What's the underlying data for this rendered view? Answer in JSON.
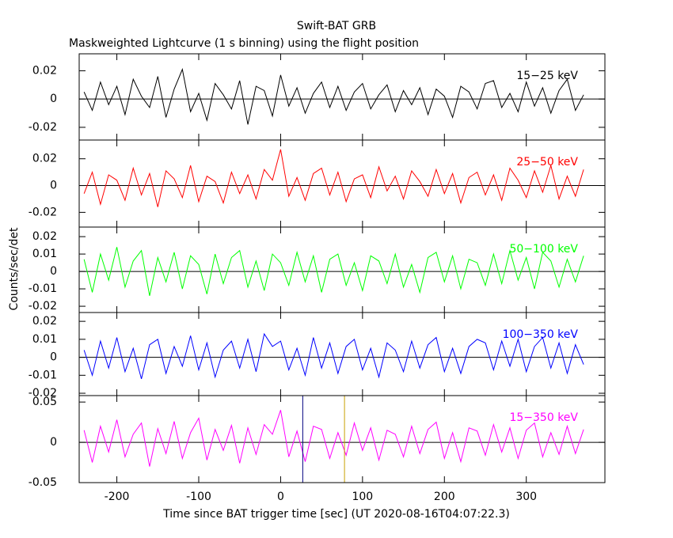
{
  "chart_data": [
    {
      "type": "line",
      "title": "Swift-BAT GRB",
      "subtitle": "Maskweighted Lightcurve (1 s binning) using the flight position",
      "xlim": [
        -246,
        396
      ],
      "xticks": [
        -200,
        -100,
        0,
        100,
        200,
        300
      ],
      "ylim": [
        -0.029,
        0.032
      ],
      "yticks": [
        -0.02,
        0,
        0.02
      ],
      "zero_line": true,
      "x": [
        -240,
        -230,
        -220,
        -210,
        -200,
        -190,
        -180,
        -170,
        -160,
        -150,
        -140,
        -130,
        -120,
        -110,
        -100,
        -90,
        -80,
        -70,
        -60,
        -50,
        -40,
        -30,
        -20,
        -10,
        0,
        10,
        20,
        30,
        40,
        50,
        60,
        70,
        80,
        90,
        100,
        110,
        120,
        130,
        140,
        150,
        160,
        170,
        180,
        190,
        200,
        210,
        220,
        230,
        240,
        250,
        260,
        270,
        280,
        290,
        300,
        310,
        320,
        330,
        340,
        350,
        360,
        370
      ],
      "series": [
        {
          "name": "15−25 keV",
          "color": "#000000",
          "values": [
            0.005,
            -0.008,
            0.012,
            -0.004,
            0.009,
            -0.011,
            0.014,
            0.002,
            -0.006,
            0.016,
            -0.013,
            0.007,
            0.021,
            -0.009,
            0.004,
            -0.015,
            0.011,
            0.003,
            -0.007,
            0.013,
            -0.018,
            0.009,
            0.006,
            -0.012,
            0.017,
            -0.005,
            0.008,
            -0.01,
            0.004,
            0.012,
            -0.006,
            0.009,
            -0.008,
            0.005,
            0.011,
            -0.007,
            0.003,
            0.01,
            -0.009,
            0.006,
            -0.004,
            0.008,
            -0.011,
            0.007,
            0.002,
            -0.013,
            0.009,
            0.005,
            -0.007,
            0.011,
            0.013,
            -0.006,
            0.004,
            -0.009,
            0.012,
            -0.005,
            0.008,
            -0.01,
            0.006,
            0.014,
            -0.008,
            0.003
          ]
        }
      ]
    },
    {
      "type": "line",
      "xlim": [
        -246,
        396
      ],
      "xticks": [
        -200,
        -100,
        0,
        100,
        200,
        300
      ],
      "ylim": [
        -0.031,
        0.034
      ],
      "yticks": [
        -0.02,
        0,
        0.02
      ],
      "zero_line": true,
      "x": [
        -240,
        -230,
        -220,
        -210,
        -200,
        -190,
        -180,
        -170,
        -160,
        -150,
        -140,
        -130,
        -120,
        -110,
        -100,
        -90,
        -80,
        -70,
        -60,
        -50,
        -40,
        -30,
        -20,
        -10,
        0,
        10,
        20,
        30,
        40,
        50,
        60,
        70,
        80,
        90,
        100,
        110,
        120,
        130,
        140,
        150,
        160,
        170,
        180,
        190,
        200,
        210,
        220,
        230,
        240,
        250,
        260,
        270,
        280,
        290,
        300,
        310,
        320,
        330,
        340,
        350,
        360,
        370
      ],
      "series": [
        {
          "name": "25−50 keV",
          "color": "#ff0000",
          "values": [
            -0.006,
            0.01,
            -0.014,
            0.008,
            0.004,
            -0.011,
            0.013,
            -0.007,
            0.009,
            -0.016,
            0.011,
            0.005,
            -0.009,
            0.015,
            -0.012,
            0.007,
            0.003,
            -0.013,
            0.01,
            -0.006,
            0.008,
            -0.01,
            0.012,
            0.004,
            0.027,
            -0.008,
            0.006,
            -0.011,
            0.009,
            0.013,
            -0.007,
            0.01,
            -0.012,
            0.005,
            0.008,
            -0.009,
            0.014,
            -0.004,
            0.007,
            -0.01,
            0.011,
            0.003,
            -0.008,
            0.012,
            -0.006,
            0.009,
            -0.013,
            0.006,
            0.01,
            -0.007,
            0.008,
            -0.011,
            0.013,
            0.004,
            -0.009,
            0.011,
            -0.005,
            0.015,
            -0.01,
            0.007,
            -0.008,
            0.012
          ]
        }
      ]
    },
    {
      "type": "line",
      "ylabel": "Counts/sec/det",
      "xlim": [
        -246,
        396
      ],
      "xticks": [
        -200,
        -100,
        0,
        100,
        200,
        300
      ],
      "ylim": [
        -0.0236,
        0.0255
      ],
      "yticks": [
        -0.02,
        -0.01,
        0,
        0.01,
        0.02
      ],
      "zero_line": true,
      "x": [
        -240,
        -230,
        -220,
        -210,
        -200,
        -190,
        -180,
        -170,
        -160,
        -150,
        -140,
        -130,
        -120,
        -110,
        -100,
        -90,
        -80,
        -70,
        -60,
        -50,
        -40,
        -30,
        -20,
        -10,
        0,
        10,
        20,
        30,
        40,
        50,
        60,
        70,
        80,
        90,
        100,
        110,
        120,
        130,
        140,
        150,
        160,
        170,
        180,
        190,
        200,
        210,
        220,
        230,
        240,
        250,
        260,
        270,
        280,
        290,
        300,
        310,
        320,
        330,
        340,
        350,
        360,
        370
      ],
      "series": [
        {
          "name": "50−100 keV",
          "color": "#00ff00",
          "values": [
            0.007,
            -0.012,
            0.01,
            -0.005,
            0.014,
            -0.009,
            0.006,
            0.012,
            -0.014,
            0.008,
            -0.006,
            0.011,
            -0.01,
            0.009,
            0.004,
            -0.013,
            0.01,
            -0.007,
            0.008,
            0.012,
            -0.009,
            0.006,
            -0.011,
            0.01,
            0.005,
            -0.008,
            0.011,
            -0.006,
            0.009,
            -0.012,
            0.007,
            0.01,
            -0.008,
            0.005,
            -0.011,
            0.009,
            0.006,
            -0.007,
            0.01,
            -0.009,
            0.004,
            -0.012,
            0.008,
            0.011,
            -0.006,
            0.009,
            -0.01,
            0.007,
            0.005,
            -0.008,
            0.01,
            -0.007,
            0.012,
            -0.005,
            0.008,
            -0.01,
            0.011,
            0.006,
            -0.009,
            0.007,
            -0.006,
            0.009
          ]
        }
      ]
    },
    {
      "type": "line",
      "xlim": [
        -246,
        396
      ],
      "xticks": [
        -200,
        -100,
        0,
        100,
        200,
        300
      ],
      "ylim": [
        -0.0213,
        0.0249
      ],
      "yticks": [
        -0.02,
        -0.01,
        0,
        0.01,
        0.02
      ],
      "zero_line": true,
      "x": [
        -240,
        -230,
        -220,
        -210,
        -200,
        -190,
        -180,
        -170,
        -160,
        -150,
        -140,
        -130,
        -120,
        -110,
        -100,
        -90,
        -80,
        -70,
        -60,
        -50,
        -40,
        -30,
        -20,
        -10,
        0,
        10,
        20,
        30,
        40,
        50,
        60,
        70,
        80,
        90,
        100,
        110,
        120,
        130,
        140,
        150,
        160,
        170,
        180,
        190,
        200,
        210,
        220,
        230,
        240,
        250,
        260,
        270,
        280,
        290,
        300,
        310,
        320,
        330,
        340,
        350,
        360,
        370
      ],
      "series": [
        {
          "name": "100−350 keV",
          "color": "#0000ff",
          "values": [
            0.004,
            -0.01,
            0.009,
            -0.006,
            0.011,
            -0.008,
            0.005,
            -0.012,
            0.007,
            0.01,
            -0.009,
            0.006,
            -0.005,
            0.012,
            -0.007,
            0.008,
            -0.011,
            0.004,
            0.009,
            -0.006,
            0.01,
            -0.008,
            0.013,
            0.006,
            0.009,
            -0.007,
            0.005,
            -0.01,
            0.011,
            -0.006,
            0.008,
            -0.009,
            0.006,
            0.01,
            -0.007,
            0.005,
            -0.011,
            0.008,
            0.004,
            -0.008,
            0.009,
            -0.006,
            0.007,
            0.011,
            -0.008,
            0.005,
            -0.009,
            0.006,
            0.01,
            0.008,
            -0.007,
            0.009,
            -0.005,
            0.01,
            -0.008,
            0.006,
            0.011,
            -0.006,
            0.008,
            -0.009,
            0.007,
            -0.004
          ]
        }
      ]
    },
    {
      "type": "line",
      "xlabel": "Time since BAT trigger time [sec] (UT 2020-08-16T04:07:22.3)",
      "xlim": [
        -246,
        396
      ],
      "xticks": [
        -200,
        -100,
        0,
        100,
        200,
        300
      ],
      "ylim": [
        -0.05,
        0.058
      ],
      "yticks": [
        -0.05,
        0,
        0.05
      ],
      "zero_line": true,
      "vlines": [
        {
          "value": 27,
          "color": "#000080"
        },
        {
          "value": 78,
          "color": "#c8a000"
        }
      ],
      "x": [
        -240,
        -230,
        -220,
        -210,
        -200,
        -190,
        -180,
        -170,
        -160,
        -150,
        -140,
        -130,
        -120,
        -110,
        -100,
        -90,
        -80,
        -70,
        -60,
        -50,
        -40,
        -30,
        -20,
        -10,
        0,
        10,
        20,
        30,
        40,
        50,
        60,
        70,
        80,
        90,
        100,
        110,
        120,
        130,
        140,
        150,
        160,
        170,
        180,
        190,
        200,
        210,
        220,
        230,
        240,
        250,
        260,
        270,
        280,
        290,
        300,
        310,
        320,
        330,
        340,
        350,
        360,
        370
      ],
      "series": [
        {
          "name": "15−350 keV",
          "color": "#ff00ff",
          "values": [
            0.015,
            -0.025,
            0.02,
            -0.012,
            0.028,
            -0.018,
            0.01,
            0.024,
            -0.03,
            0.017,
            -0.014,
            0.026,
            -0.02,
            0.012,
            0.03,
            -0.022,
            0.016,
            -0.01,
            0.021,
            -0.026,
            0.018,
            -0.015,
            0.022,
            0.01,
            0.04,
            -0.018,
            0.014,
            -0.024,
            0.02,
            0.016,
            -0.02,
            0.012,
            -0.016,
            0.024,
            -0.01,
            0.018,
            -0.022,
            0.015,
            0.01,
            -0.018,
            0.02,
            -0.014,
            0.016,
            0.025,
            -0.02,
            0.012,
            -0.024,
            0.018,
            0.014,
            -0.016,
            0.022,
            -0.012,
            0.018,
            -0.02,
            0.015,
            0.024,
            -0.018,
            0.012,
            -0.015,
            0.02,
            -0.014,
            0.016
          ]
        }
      ]
    }
  ]
}
